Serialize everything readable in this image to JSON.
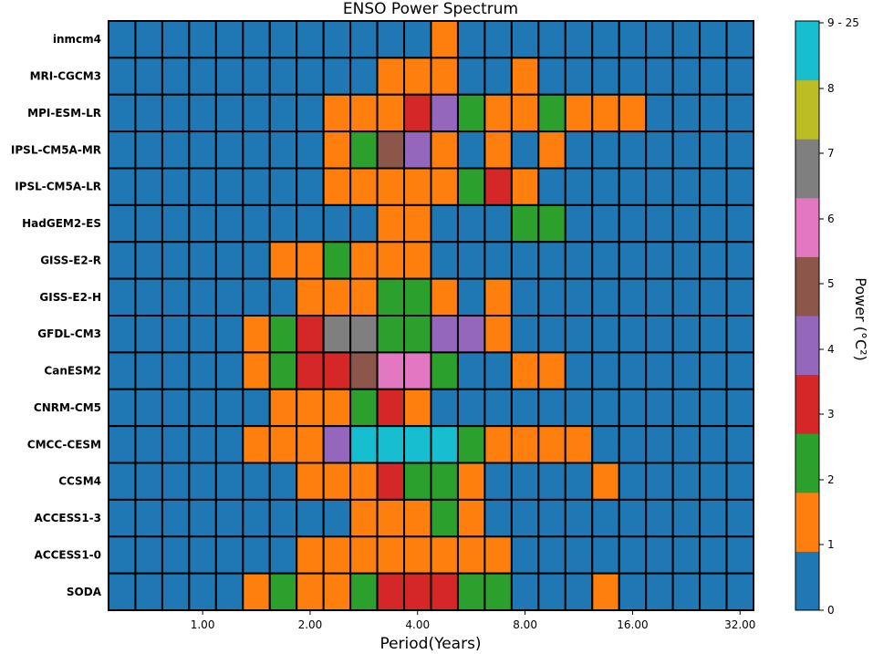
{
  "chart_data": {
    "type": "heatmap",
    "title": "ENSO Power Spectrum",
    "xlabel": "Period(Years)",
    "colorbar_label": "Power (°C²)",
    "rows": [
      "inmcm4",
      "MRI-CGCM3",
      "MPI-ESM-LR",
      "IPSL-CM5A-MR",
      "IPSL-CM5A-LR",
      "HadGEM2-ES",
      "GISS-E2-R",
      "GISS-E2-H",
      "GFDL-CM3",
      "CanESM2",
      "CNRM-CM5",
      "CMCC-CESM",
      "CCSM4",
      "ACCESS1-3",
      "ACCESS1-0",
      "SODA"
    ],
    "x_ticks": [
      {
        "label": "1.00",
        "col": 3.5
      },
      {
        "label": "2.00",
        "col": 7.5
      },
      {
        "label": "4.00",
        "col": 11.5
      },
      {
        "label": "8.00",
        "col": 15.5
      },
      {
        "label": "16.00",
        "col": 19.5
      },
      {
        "label": "32.00",
        "col": 23.5
      }
    ],
    "colorbar": {
      "colors": [
        "#1f77b4",
        "#ff7f0e",
        "#2ca02c",
        "#d62728",
        "#9467bd",
        "#8c564b",
        "#e377c2",
        "#7f7f7f",
        "#bcbd22",
        "#17becf"
      ],
      "tick_labels": [
        "0",
        "1",
        "2",
        "3",
        "4",
        "5",
        "6",
        "7",
        "8",
        "9 - 25"
      ]
    },
    "grid": [
      [
        0,
        0,
        0,
        0,
        0,
        0,
        0,
        0,
        0,
        0,
        0,
        0,
        1,
        0,
        0,
        0,
        0,
        0,
        0,
        0,
        0,
        0,
        0,
        0
      ],
      [
        0,
        0,
        0,
        0,
        0,
        0,
        0,
        0,
        0,
        0,
        1,
        1,
        1,
        0,
        0,
        1,
        0,
        0,
        0,
        0,
        0,
        0,
        0,
        0
      ],
      [
        0,
        0,
        0,
        0,
        0,
        0,
        0,
        0,
        1,
        1,
        1,
        3,
        4,
        2,
        1,
        1,
        2,
        1,
        1,
        1,
        0,
        0,
        0,
        0
      ],
      [
        0,
        0,
        0,
        0,
        0,
        0,
        0,
        0,
        1,
        2,
        5,
        4,
        1,
        0,
        1,
        0,
        1,
        0,
        0,
        0,
        0,
        0,
        0,
        0
      ],
      [
        0,
        0,
        0,
        0,
        0,
        0,
        0,
        0,
        1,
        1,
        1,
        1,
        1,
        2,
        3,
        1,
        0,
        0,
        0,
        0,
        0,
        0,
        0,
        0
      ],
      [
        0,
        0,
        0,
        0,
        0,
        0,
        0,
        0,
        0,
        0,
        1,
        1,
        0,
        0,
        0,
        2,
        2,
        0,
        0,
        0,
        0,
        0,
        0,
        0
      ],
      [
        0,
        0,
        0,
        0,
        0,
        0,
        1,
        1,
        2,
        1,
        1,
        1,
        0,
        0,
        0,
        0,
        0,
        0,
        0,
        0,
        0,
        0,
        0,
        0
      ],
      [
        0,
        0,
        0,
        0,
        0,
        0,
        0,
        1,
        1,
        1,
        2,
        2,
        1,
        0,
        1,
        0,
        0,
        0,
        0,
        0,
        0,
        0,
        0,
        0
      ],
      [
        0,
        0,
        0,
        0,
        0,
        1,
        2,
        3,
        7,
        7,
        2,
        2,
        4,
        4,
        1,
        0,
        0,
        0,
        0,
        0,
        0,
        0,
        0,
        0
      ],
      [
        0,
        0,
        0,
        0,
        0,
        1,
        2,
        3,
        3,
        5,
        6,
        6,
        2,
        0,
        0,
        1,
        1,
        0,
        0,
        0,
        0,
        0,
        0,
        0
      ],
      [
        0,
        0,
        0,
        0,
        0,
        0,
        1,
        1,
        1,
        2,
        3,
        1,
        0,
        0,
        0,
        0,
        0,
        0,
        0,
        0,
        0,
        0,
        0,
        0
      ],
      [
        0,
        0,
        0,
        0,
        0,
        1,
        1,
        1,
        4,
        9,
        9,
        9,
        9,
        2,
        1,
        1,
        1,
        1,
        0,
        0,
        0,
        0,
        0,
        0
      ],
      [
        0,
        0,
        0,
        0,
        0,
        0,
        0,
        1,
        1,
        1,
        3,
        2,
        2,
        1,
        0,
        0,
        0,
        0,
        1,
        0,
        0,
        0,
        0,
        0
      ],
      [
        0,
        0,
        0,
        0,
        0,
        0,
        0,
        0,
        0,
        1,
        1,
        1,
        2,
        1,
        0,
        0,
        0,
        0,
        0,
        0,
        0,
        0,
        0,
        0
      ],
      [
        0,
        0,
        0,
        0,
        0,
        0,
        0,
        1,
        1,
        1,
        1,
        1,
        1,
        1,
        1,
        0,
        0,
        0,
        0,
        0,
        0,
        0,
        0,
        0
      ],
      [
        0,
        0,
        0,
        0,
        0,
        1,
        2,
        1,
        1,
        2,
        3,
        3,
        3,
        2,
        2,
        0,
        0,
        0,
        1,
        0,
        0,
        0,
        0,
        0
      ]
    ]
  }
}
